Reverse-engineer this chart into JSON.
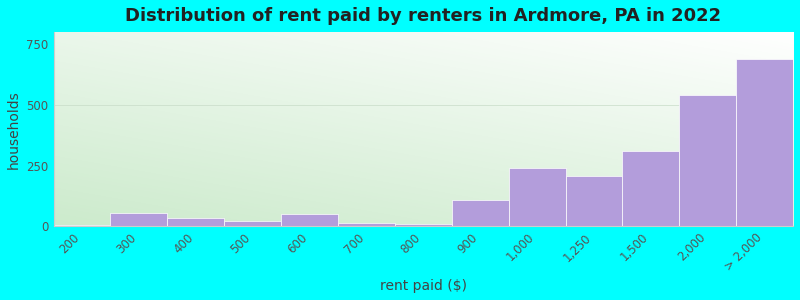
{
  "title": "Distribution of rent paid by renters in Ardmore, PA in 2022",
  "xlabel": "rent paid ($)",
  "ylabel": "households",
  "categories": [
    "200",
    "300",
    "400",
    "500",
    "600",
    "700",
    "800",
    "900",
    "1,000",
    "1,250",
    "1,500",
    "2,000",
    "> 2,000"
  ],
  "values": [
    5,
    55,
    35,
    20,
    50,
    15,
    10,
    110,
    240,
    205,
    310,
    540,
    690
  ],
  "bar_color": "#b39ddb",
  "background_color": "#00ffff",
  "ylim": [
    0,
    800
  ],
  "yticks": [
    0,
    250,
    500,
    750
  ],
  "title_fontsize": 13,
  "label_fontsize": 10,
  "tick_fontsize": 8.5,
  "gradient_colors": [
    "#c8e6c0",
    "#f0f7e8",
    "#f8fbf5",
    "#fafcf8"
  ],
  "grid_color": "#c8dcc8",
  "spine_color": "#cccccc"
}
